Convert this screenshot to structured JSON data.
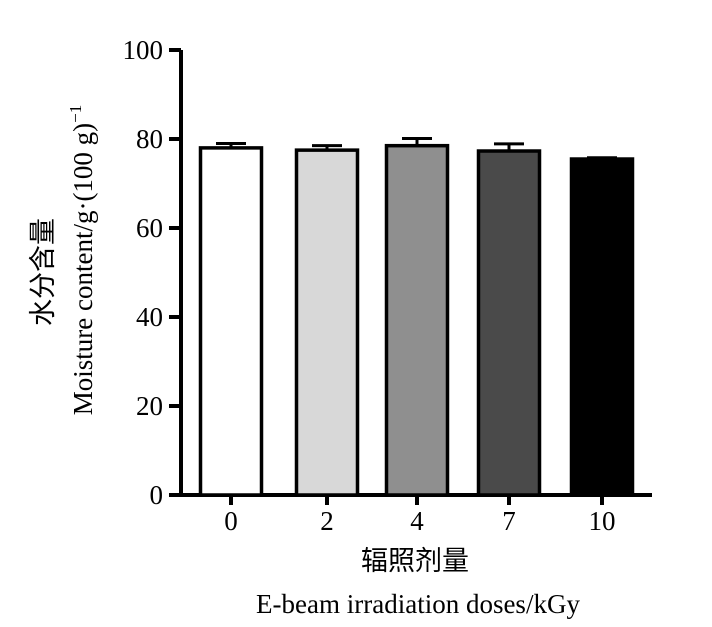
{
  "chart_data": {
    "type": "bar",
    "categories": [
      "0",
      "2",
      "4",
      "7",
      "10"
    ],
    "values": [
      78,
      77.5,
      78.5,
      77.3,
      75.5
    ],
    "errors": [
      1.0,
      1.0,
      1.6,
      1.6,
      0.3
    ],
    "bar_colors": [
      "#ffffff",
      "#d8d8d8",
      "#8f8f8f",
      "#4a4a4a",
      "#000000"
    ],
    "xlabel_cn": "辐照剂量",
    "xlabel_en": "E-beam irradiation doses/kGy",
    "ylabel_cn": "水分含量",
    "ylabel_en": "Moisture content/g·(100 g)",
    "ylabel_sup": "−1",
    "ylim": [
      0,
      100
    ],
    "yticks": [
      "0",
      "20",
      "40",
      "60",
      "80",
      "100"
    ],
    "grid": false
  }
}
